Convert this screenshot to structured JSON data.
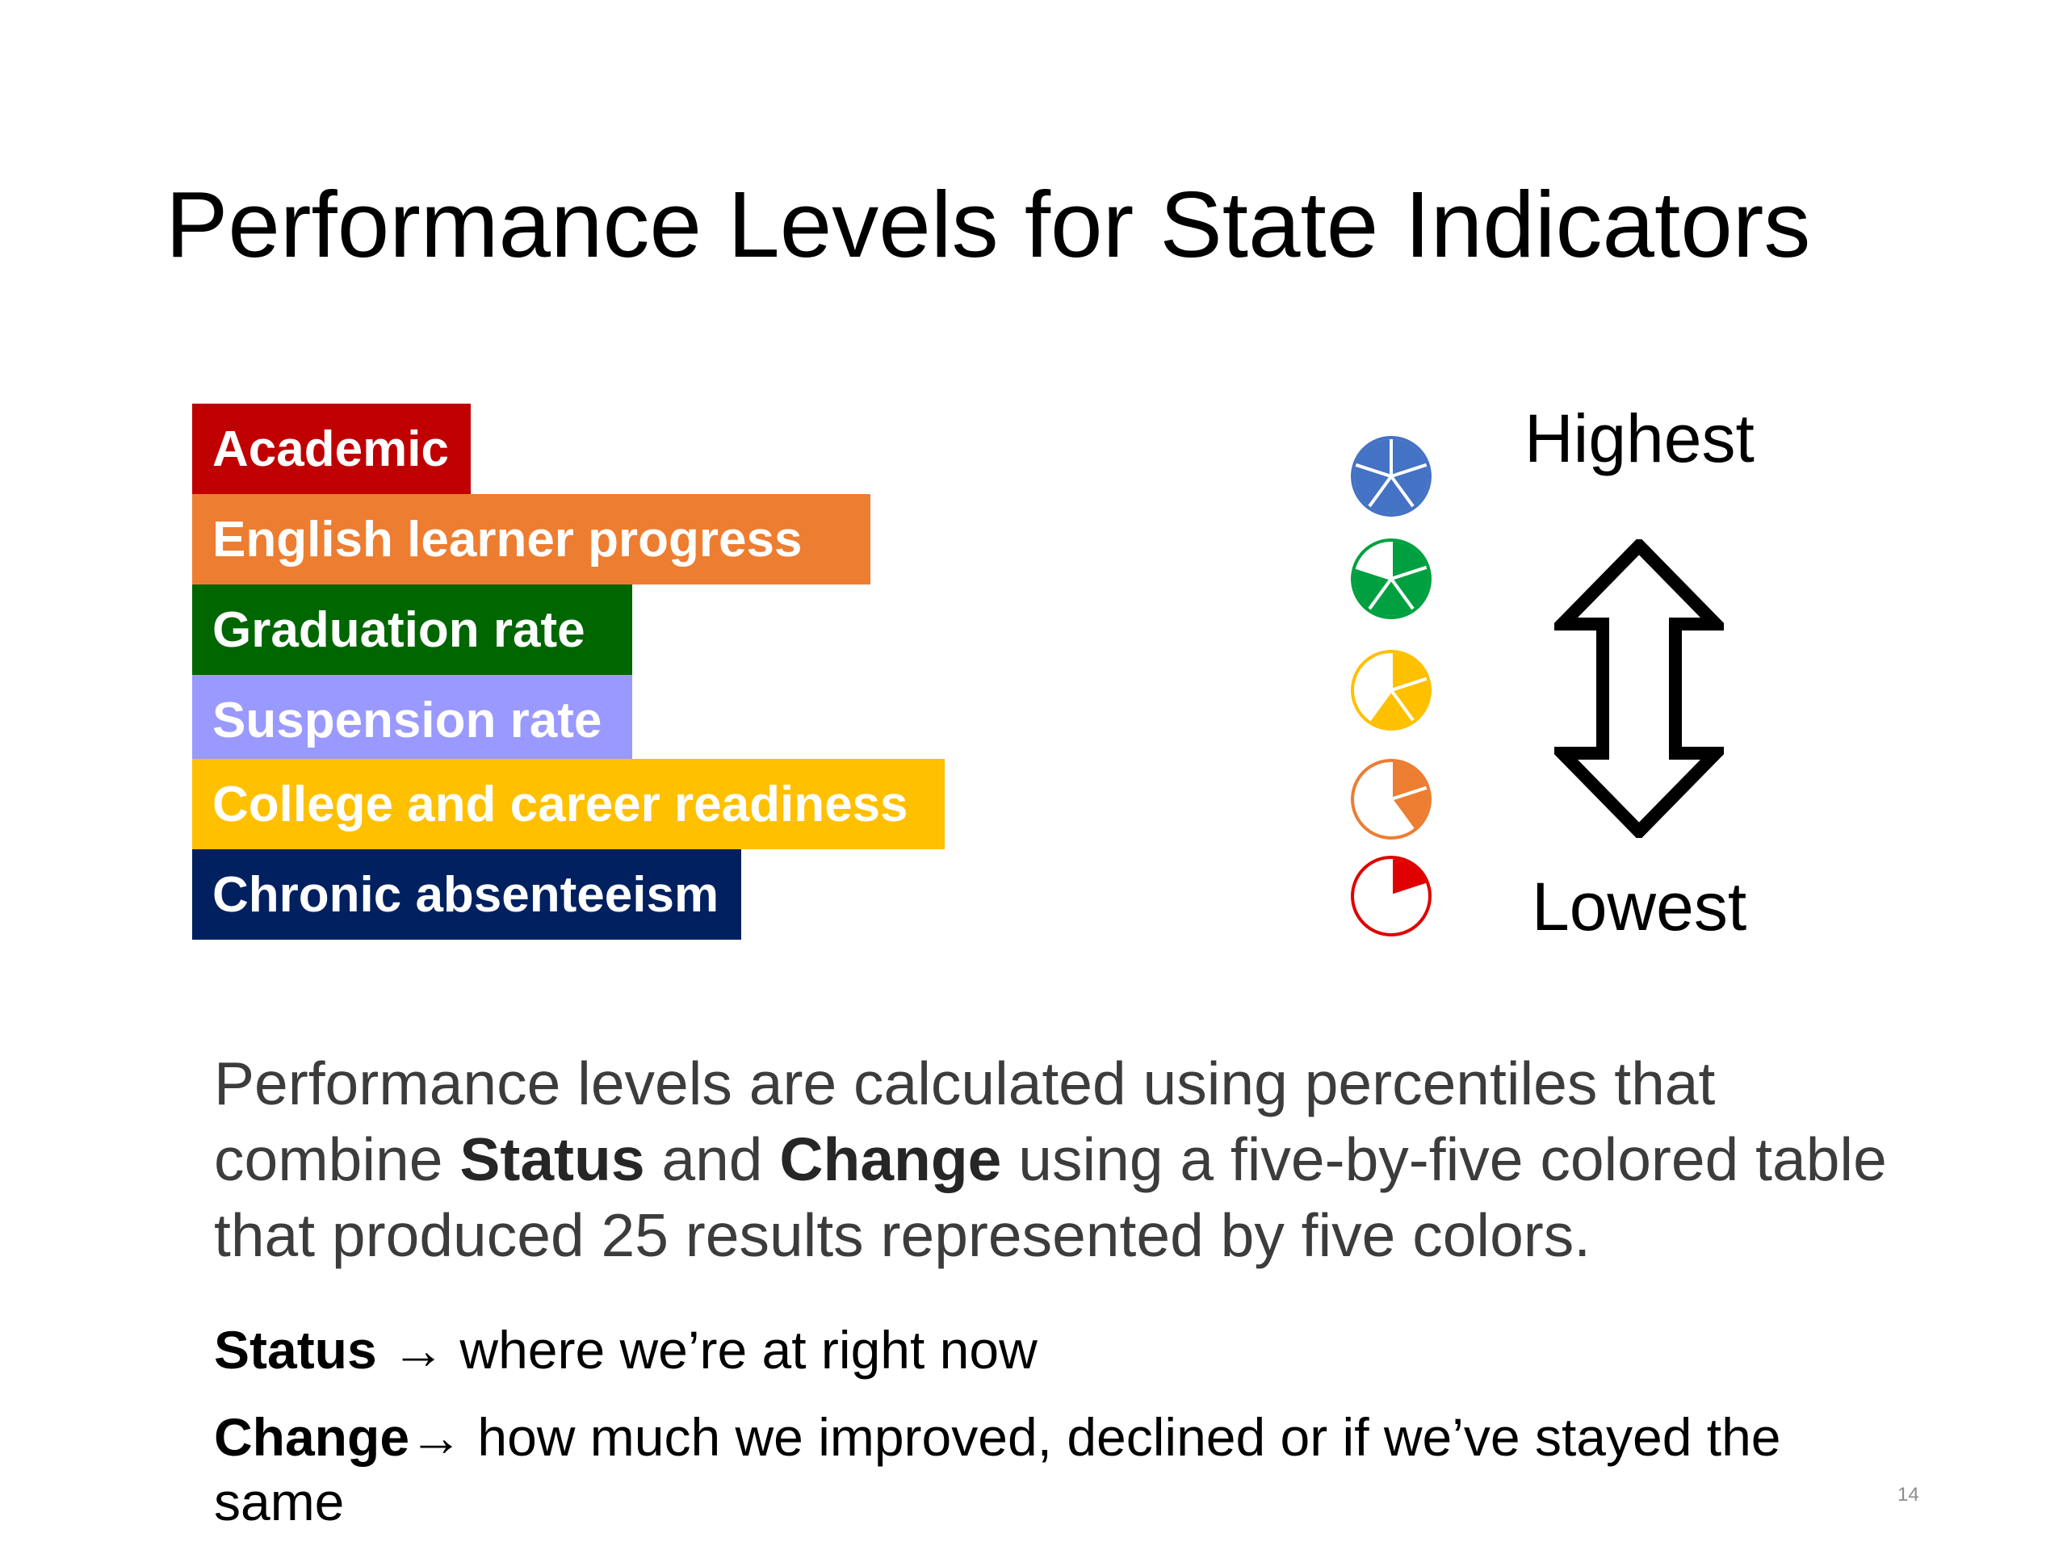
{
  "slide": {
    "title": "Performance Levels for State Indicators",
    "indicators": [
      {
        "label": "Academic",
        "color": "#c00000"
      },
      {
        "label": "English learner progress",
        "color": "#ed7d31"
      },
      {
        "label": "Graduation rate",
        "color": "#006600"
      },
      {
        "label": "Suspension rate",
        "color": "#9999ff"
      },
      {
        "label": "College and career readiness",
        "color": "#ffc000"
      },
      {
        "label": "Chronic absenteeism",
        "color": "#002060"
      }
    ],
    "scale": {
      "highest_label": "Highest",
      "lowest_label": "Lowest",
      "levels": [
        {
          "name": "blue",
          "color": "#4472c4",
          "filled_fraction": 1.0
        },
        {
          "name": "green",
          "color": "#00a040",
          "filled_fraction": 0.8
        },
        {
          "name": "yellow",
          "color": "#ffc000",
          "filled_fraction": 0.6
        },
        {
          "name": "orange",
          "color": "#ed7d31",
          "filled_fraction": 0.4
        },
        {
          "name": "red",
          "color": "#e00000",
          "filled_fraction": 0.2
        }
      ]
    },
    "paragraph": {
      "part1": "Performance levels are calculated using percentiles that combine ",
      "bold1": "Status",
      "part2": " and ",
      "bold2": "Change",
      "part3": " using a five-by-five colored table that produced 25 results represented by five colors."
    },
    "definitions": {
      "status_term": "Status",
      "status_arrow": "→",
      "status_text": " where we’re at right now",
      "change_term": "Change",
      "change_arrow": "→",
      "change_text": " how much we improved, declined or if we’ve stayed the same"
    },
    "page_number": "14"
  }
}
